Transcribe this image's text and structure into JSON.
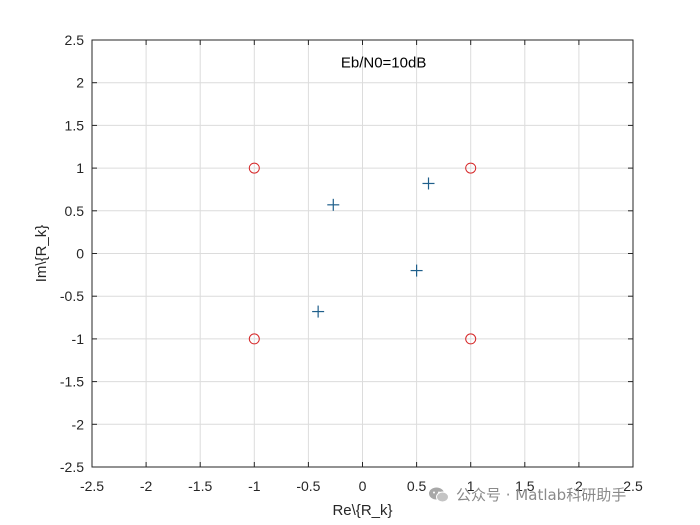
{
  "chart_data": {
    "type": "scatter",
    "xlabel": "Re\\{R_k}",
    "ylabel": "Im\\{R_k}",
    "xlim": [
      -2.5,
      2.5
    ],
    "ylim": [
      -2.5,
      2.5
    ],
    "xticks": [
      -2.5,
      -2,
      -1.5,
      -1,
      -0.5,
      0,
      0.5,
      1,
      1.5,
      2,
      2.5
    ],
    "yticks": [
      -2.5,
      -2,
      -1.5,
      -1,
      -0.5,
      0,
      0.5,
      1,
      1.5,
      2,
      2.5
    ],
    "grid": true,
    "annotation": {
      "text": "Eb/N0=10dB",
      "x": -0.2,
      "y": 2.18
    },
    "series": [
      {
        "marker": "circle",
        "color": "#d62728",
        "points": [
          [
            -1,
            1
          ],
          [
            1,
            1
          ],
          [
            -1,
            -1
          ],
          [
            1,
            -1
          ]
        ]
      },
      {
        "marker": "plus",
        "color": "#1f5f8b",
        "points": [
          [
            -0.27,
            0.57
          ],
          [
            0.61,
            0.82
          ],
          [
            0.5,
            -0.2
          ],
          [
            -0.41,
            -0.68
          ]
        ]
      }
    ]
  },
  "watermark": {
    "text": "公众号 · Matlab科研助手",
    "icon": "wechat-icon"
  }
}
